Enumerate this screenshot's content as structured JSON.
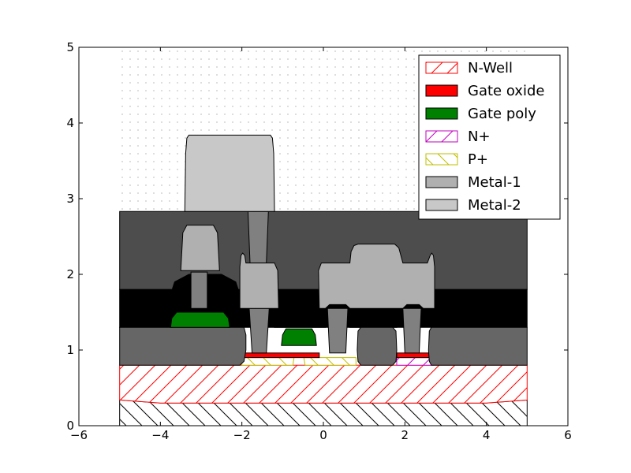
{
  "chart_data": {
    "type": "cross-section",
    "xlim": [
      -6,
      6
    ],
    "ylim": [
      0,
      5
    ],
    "x_ticks": [
      "−6",
      "−4",
      "−2",
      "0",
      "2",
      "4",
      "6"
    ],
    "y_ticks": [
      "0",
      "1",
      "2",
      "3",
      "4",
      "5"
    ],
    "legend": {
      "placement": "top-right",
      "entries": [
        {
          "label": "N-Well",
          "fill": "none",
          "edge": "#ff0000",
          "hatch": "/"
        },
        {
          "label": "Gate oxide",
          "fill": "#ff0000",
          "edge": "#000000",
          "hatch": ""
        },
        {
          "label": "Gate poly",
          "fill": "#008000",
          "edge": "#000000",
          "hatch": ""
        },
        {
          "label": "N+",
          "fill": "none",
          "edge": "#bf00bf",
          "hatch": "/"
        },
        {
          "label": "P+",
          "fill": "none",
          "edge": "#bfbf00",
          "hatch": "\\"
        },
        {
          "label": "Metal-1",
          "fill": "#b0b0b0",
          "edge": "#000000",
          "hatch": ""
        },
        {
          "label": "Metal-2",
          "fill": "#c8c8c8",
          "edge": "#000000",
          "hatch": ""
        }
      ]
    },
    "layers": [
      {
        "name": "substrate",
        "fill": "none",
        "hatch": "\\",
        "color": "#000000",
        "points": [
          [
            -5,
            0
          ],
          [
            5,
            0
          ],
          [
            5,
            0.34
          ],
          [
            4,
            0.3
          ],
          [
            -4,
            0.3
          ],
          [
            -5,
            0.34
          ]
        ]
      },
      {
        "name": "nwell",
        "fill": "none",
        "hatch": "/",
        "color": "#ff0000",
        "points": [
          [
            -5,
            0.34
          ],
          [
            -4,
            0.3
          ],
          [
            4,
            0.3
          ],
          [
            5,
            0.34
          ],
          [
            5,
            0.8
          ],
          [
            -5,
            0.8
          ]
        ]
      },
      {
        "name": "pplus-left",
        "fill": "none",
        "hatch": "\\",
        "color": "#bfbf00",
        "points": [
          [
            -2,
            0.8
          ],
          [
            -0.75,
            0.8
          ],
          [
            -0.72,
            0.9
          ],
          [
            -2,
            0.9
          ]
        ]
      },
      {
        "name": "pplus-right",
        "fill": "none",
        "hatch": "\\",
        "color": "#bfbf00",
        "points": [
          [
            -0.45,
            0.8
          ],
          [
            0.8,
            0.8
          ],
          [
            0.8,
            0.9
          ],
          [
            -0.48,
            0.9
          ]
        ]
      },
      {
        "name": "nplus",
        "fill": "none",
        "hatch": "/",
        "color": "#bf00bf",
        "points": [
          [
            1.8,
            0.8
          ],
          [
            2.7,
            0.8
          ],
          [
            2.7,
            0.9
          ],
          [
            1.8,
            0.9
          ]
        ]
      },
      {
        "name": "gate-oxide-1",
        "fill": "#ff0000",
        "color": "#000000",
        "points": [
          [
            -1.95,
            0.9
          ],
          [
            -0.1,
            0.9
          ],
          [
            -0.1,
            0.96
          ],
          [
            -1.95,
            0.96
          ]
        ]
      },
      {
        "name": "gate-oxide-2",
        "fill": "#ff0000",
        "color": "#000000",
        "points": [
          [
            1.8,
            0.9
          ],
          [
            2.6,
            0.9
          ],
          [
            2.6,
            0.96
          ],
          [
            1.8,
            0.96
          ]
        ]
      },
      {
        "name": "ild-upper",
        "fill": "#4d4d4d",
        "color": "#000000",
        "points": [
          [
            -5,
            1.8
          ],
          [
            5,
            1.8
          ],
          [
            5,
            2.83
          ],
          [
            -5,
            2.83
          ]
        ]
      },
      {
        "name": "ild-lower",
        "fill": "#000000",
        "color": "#000000",
        "points": [
          [
            -5,
            1.3
          ],
          [
            5,
            1.3
          ],
          [
            5,
            1.8
          ],
          [
            -5,
            1.8
          ]
        ]
      },
      {
        "name": "poly-bump-1",
        "fill": "#000000",
        "color": "#000000",
        "points": [
          [
            -3.8,
            1.3
          ],
          [
            -3.8,
            1.65
          ],
          [
            -3.65,
            1.9
          ],
          [
            -3.3,
            2.0
          ],
          [
            -2.5,
            2.0
          ],
          [
            -2.15,
            1.9
          ],
          [
            -2.0,
            1.65
          ],
          [
            -2.0,
            1.3
          ]
        ]
      },
      {
        "name": "poly-bump-2",
        "fill": "#000000",
        "color": "#000000",
        "points": [
          [
            -1.2,
            1.3
          ],
          [
            -1.15,
            1.55
          ],
          [
            -1.0,
            1.72
          ],
          [
            -0.8,
            1.78
          ],
          [
            -0.35,
            1.78
          ],
          [
            -0.15,
            1.72
          ],
          [
            0.0,
            1.55
          ],
          [
            0.05,
            1.3
          ]
        ]
      },
      {
        "name": "poly-bump-3",
        "fill": "#000000",
        "color": "#000000",
        "points": [
          [
            0.65,
            1.3
          ],
          [
            0.68,
            1.55
          ],
          [
            0.8,
            1.72
          ],
          [
            0.95,
            1.78
          ],
          [
            1.5,
            1.78
          ],
          [
            1.65,
            1.72
          ],
          [
            1.77,
            1.55
          ],
          [
            1.8,
            1.3
          ]
        ]
      },
      {
        "name": "field-oxide-left",
        "fill": "#666666",
        "color": "#000000",
        "points": [
          [
            -5,
            0.8
          ],
          [
            -2.05,
            0.8
          ],
          [
            -1.95,
            0.85
          ],
          [
            -1.9,
            1.0
          ],
          [
            -1.9,
            1.2
          ],
          [
            -1.95,
            1.3
          ],
          [
            -5,
            1.3
          ]
        ]
      },
      {
        "name": "field-oxide-mid",
        "fill": "#666666",
        "color": "#000000",
        "points": [
          [
            0.85,
            0.85
          ],
          [
            0.92,
            0.8
          ],
          [
            1.7,
            0.8
          ],
          [
            1.78,
            0.85
          ],
          [
            1.8,
            1.0
          ],
          [
            1.78,
            1.25
          ],
          [
            1.7,
            1.3
          ],
          [
            0.92,
            1.3
          ],
          [
            0.85,
            1.25
          ],
          [
            0.83,
            1.0
          ]
        ]
      },
      {
        "name": "field-oxide-right",
        "fill": "#666666",
        "color": "#000000",
        "points": [
          [
            2.6,
            0.85
          ],
          [
            2.65,
            0.8
          ],
          [
            5,
            0.8
          ],
          [
            5,
            1.3
          ],
          [
            2.65,
            1.3
          ],
          [
            2.6,
            1.25
          ],
          [
            2.58,
            1.0
          ]
        ]
      },
      {
        "name": "gate-poly-1",
        "fill": "#008000",
        "color": "#000000",
        "points": [
          [
            -3.75,
            1.3
          ],
          [
            -3.72,
            1.42
          ],
          [
            -3.6,
            1.5
          ],
          [
            -2.45,
            1.5
          ],
          [
            -2.33,
            1.42
          ],
          [
            -2.3,
            1.3
          ]
        ]
      },
      {
        "name": "gate-poly-2",
        "fill": "#008000",
        "color": "#000000",
        "points": [
          [
            -1.03,
            1.06
          ],
          [
            -1.0,
            1.2
          ],
          [
            -0.92,
            1.28
          ],
          [
            -0.28,
            1.28
          ],
          [
            -0.2,
            1.2
          ],
          [
            -0.17,
            1.06
          ]
        ]
      },
      {
        "name": "contact-1",
        "fill": "#808080",
        "color": "#000000",
        "points": [
          [
            -3.25,
            1.55
          ],
          [
            -2.85,
            1.55
          ],
          [
            -2.85,
            2.03
          ],
          [
            -3.25,
            2.03
          ]
        ]
      },
      {
        "name": "contact-2",
        "fill": "#808080",
        "color": "#000000",
        "points": [
          [
            -1.75,
            0.96
          ],
          [
            -1.4,
            0.96
          ],
          [
            -1.33,
            1.55
          ],
          [
            -1.82,
            1.55
          ]
        ]
      },
      {
        "name": "contact-3",
        "fill": "#808080",
        "color": "#000000",
        "points": [
          [
            0.15,
            0.96
          ],
          [
            0.55,
            0.96
          ],
          [
            0.6,
            1.55
          ],
          [
            0.1,
            1.55
          ]
        ]
      },
      {
        "name": "contact-4",
        "fill": "#808080",
        "color": "#000000",
        "points": [
          [
            2.0,
            0.96
          ],
          [
            2.35,
            0.96
          ],
          [
            2.4,
            1.55
          ],
          [
            1.95,
            1.55
          ]
        ]
      },
      {
        "name": "via-1",
        "fill": "#808080",
        "color": "#000000",
        "points": [
          [
            -1.85,
            2.83
          ],
          [
            -1.35,
            2.83
          ],
          [
            -1.4,
            2.15
          ],
          [
            -1.8,
            2.15
          ]
        ]
      },
      {
        "name": "metal1-a",
        "fill": "#b0b0b0",
        "color": "#000000",
        "points": [
          [
            -3.5,
            2.05
          ],
          [
            -3.45,
            2.55
          ],
          [
            -3.35,
            2.65
          ],
          [
            -2.7,
            2.65
          ],
          [
            -2.6,
            2.55
          ],
          [
            -2.55,
            2.05
          ]
        ]
      },
      {
        "name": "metal1-b",
        "fill": "#b0b0b0",
        "color": "#000000",
        "points": [
          [
            -2.05,
            1.55
          ],
          [
            -2.05,
            2.1
          ],
          [
            -2.02,
            2.25
          ],
          [
            -1.98,
            2.28
          ],
          [
            -1.93,
            2.25
          ],
          [
            -1.9,
            2.15
          ],
          [
            -1.2,
            2.15
          ],
          [
            -1.12,
            2.05
          ],
          [
            -1.1,
            1.55
          ]
        ]
      },
      {
        "name": "metal1-c",
        "fill": "#b0b0b0",
        "color": "#000000",
        "points": [
          [
            -0.1,
            1.55
          ],
          [
            -0.12,
            2.05
          ],
          [
            -0.05,
            2.15
          ],
          [
            0.65,
            2.15
          ],
          [
            0.68,
            2.3
          ],
          [
            0.75,
            2.38
          ],
          [
            0.85,
            2.4
          ],
          [
            1.75,
            2.4
          ],
          [
            1.85,
            2.35
          ],
          [
            1.9,
            2.25
          ],
          [
            1.95,
            2.15
          ],
          [
            2.55,
            2.15
          ],
          [
            2.62,
            2.25
          ],
          [
            2.66,
            2.28
          ],
          [
            2.7,
            2.25
          ],
          [
            2.73,
            2.1
          ],
          [
            2.73,
            1.55
          ],
          [
            2.45,
            1.55
          ],
          [
            2.35,
            1.6
          ],
          [
            2.05,
            1.6
          ],
          [
            1.95,
            1.55
          ],
          [
            0.65,
            1.55
          ],
          [
            0.55,
            1.6
          ],
          [
            0.15,
            1.6
          ],
          [
            0.05,
            1.55
          ]
        ]
      },
      {
        "name": "metal2",
        "fill": "#c8c8c8",
        "color": "#000000",
        "points": [
          [
            -3.4,
            2.83
          ],
          [
            -3.38,
            3.6
          ],
          [
            -3.35,
            3.8
          ],
          [
            -3.3,
            3.84
          ],
          [
            -1.3,
            3.84
          ],
          [
            -1.25,
            3.8
          ],
          [
            -1.22,
            3.6
          ],
          [
            -1.2,
            2.83
          ]
        ]
      }
    ]
  }
}
